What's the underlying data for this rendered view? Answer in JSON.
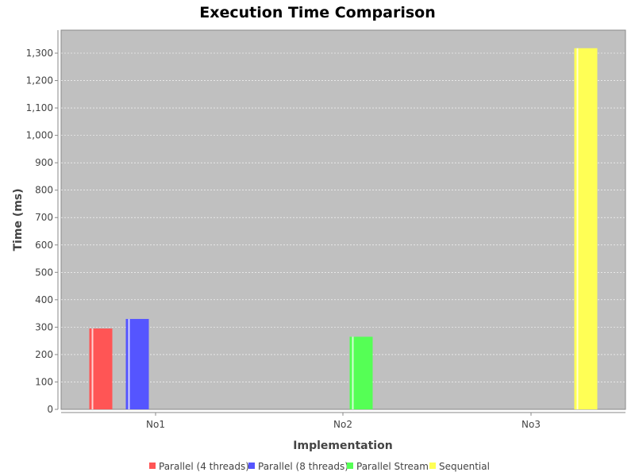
{
  "chart_data": {
    "type": "bar",
    "title": "Execution Time Comparison",
    "xlabel": "Implementation",
    "ylabel": "Time (ms)",
    "categories": [
      "No1",
      "No2",
      "No3"
    ],
    "ylim": [
      0,
      1400
    ],
    "yticks": [
      0,
      100,
      200,
      300,
      400,
      500,
      600,
      700,
      800,
      900,
      1000,
      1100,
      1200,
      1300
    ],
    "ytick_labels": [
      "0",
      "100",
      "200",
      "300",
      "400",
      "500",
      "600",
      "700",
      "800",
      "900",
      "1,000",
      "1,100",
      "1,200",
      "1,300"
    ],
    "grid": true,
    "legend_position": "bottom",
    "plot_background": "#c0c0c0",
    "series": [
      {
        "name": "Parallel (4 threads)",
        "color": "#ff5555",
        "values": [
          295,
          null,
          null
        ]
      },
      {
        "name": "Parallel (8 threads)",
        "color": "#5555ff",
        "values": [
          330,
          null,
          null
        ]
      },
      {
        "name": "Parallel Stream",
        "color": "#55ff55",
        "values": [
          null,
          265,
          null
        ]
      },
      {
        "name": "Sequential",
        "color": "#ffff55",
        "values": [
          null,
          null,
          1318
        ]
      }
    ]
  }
}
